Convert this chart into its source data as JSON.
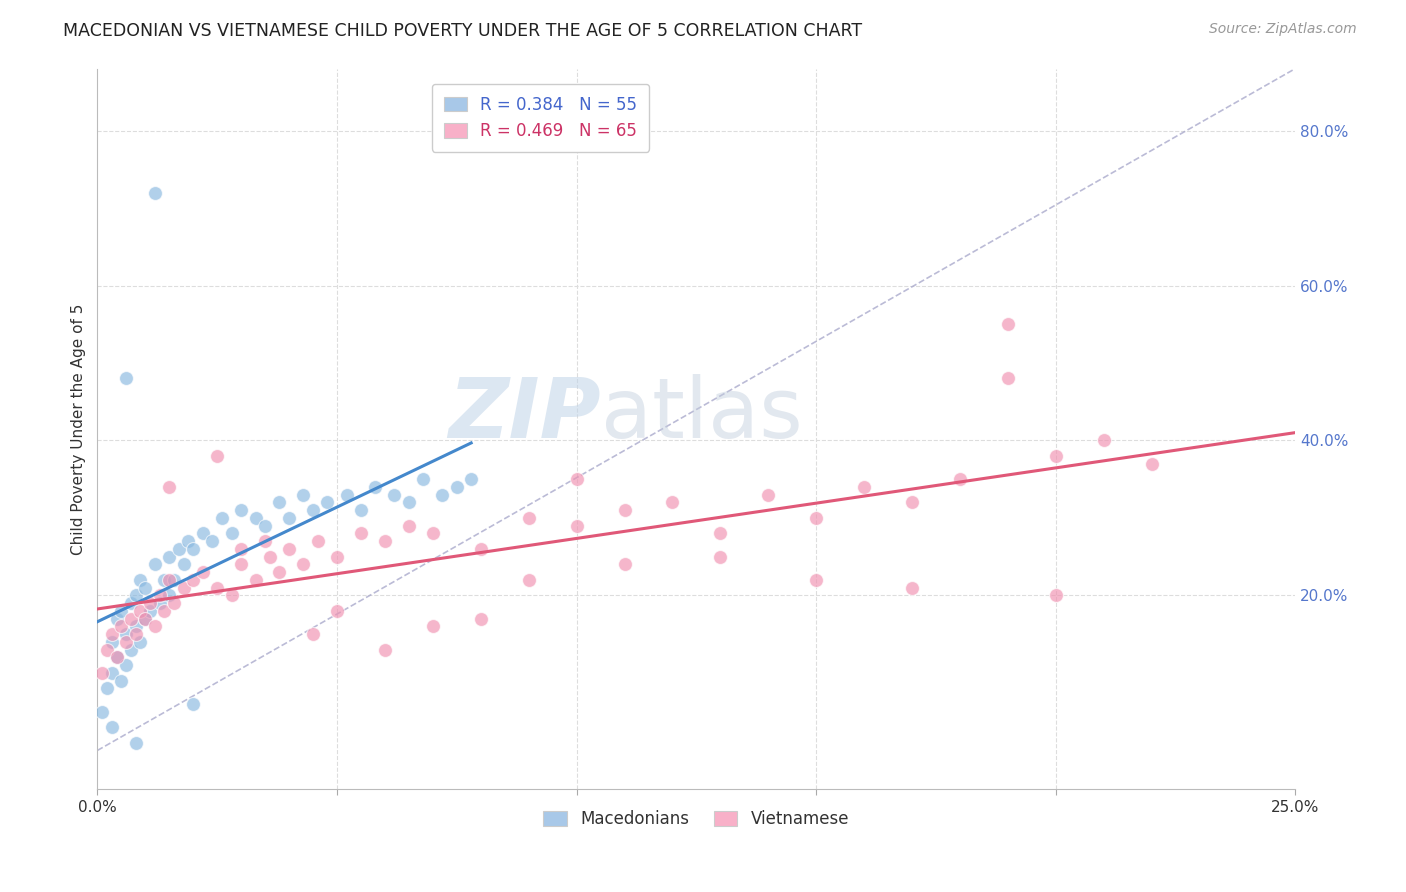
{
  "title": "MACEDONIAN VS VIETNAMESE CHILD POVERTY UNDER THE AGE OF 5 CORRELATION CHART",
  "source": "Source: ZipAtlas.com",
  "ylabel": "Child Poverty Under the Age of 5",
  "xlim": [
    0.0,
    0.25
  ],
  "ylim": [
    -0.05,
    0.88
  ],
  "xticks": [
    0.0,
    0.05,
    0.1,
    0.15,
    0.2,
    0.25
  ],
  "xtick_labels": [
    "0.0%",
    "",
    "",
    "",
    "",
    "25.0%"
  ],
  "yticks_right": [
    0.2,
    0.4,
    0.6,
    0.8
  ],
  "ytick_labels_right": [
    "20.0%",
    "40.0%",
    "60.0%",
    "80.0%"
  ],
  "legend_entries": [
    {
      "label": "R = 0.384   N = 55",
      "color": "#a8c8e8"
    },
    {
      "label": "R = 0.469   N = 65",
      "color": "#f8b0c8"
    }
  ],
  "legend_bottom": [
    "Macedonians",
    "Vietnamese"
  ],
  "macedonian_color": "#88b8e0",
  "vietnamese_color": "#f090b0",
  "trend_mac_color": "#4488cc",
  "trend_vie_color": "#e05878",
  "watermark_zip": "ZIP",
  "watermark_atlas": "atlas",
  "watermark_color_zip": "#c0d4e8",
  "watermark_color_atlas": "#c0ccdc",
  "grid_color": "#dddddd",
  "mac_points_x": [
    0.001,
    0.002,
    0.003,
    0.003,
    0.004,
    0.004,
    0.005,
    0.005,
    0.006,
    0.006,
    0.007,
    0.007,
    0.008,
    0.008,
    0.009,
    0.009,
    0.01,
    0.01,
    0.011,
    0.012,
    0.013,
    0.014,
    0.015,
    0.015,
    0.016,
    0.017,
    0.018,
    0.019,
    0.02,
    0.022,
    0.024,
    0.026,
    0.028,
    0.03,
    0.033,
    0.035,
    0.038,
    0.04,
    0.043,
    0.045,
    0.048,
    0.052,
    0.055,
    0.058,
    0.062,
    0.065,
    0.068,
    0.072,
    0.075,
    0.078,
    0.012,
    0.006,
    0.003,
    0.008,
    0.02
  ],
  "mac_points_y": [
    0.05,
    0.08,
    0.1,
    0.14,
    0.12,
    0.17,
    0.09,
    0.18,
    0.11,
    0.15,
    0.13,
    0.19,
    0.16,
    0.2,
    0.14,
    0.22,
    0.17,
    0.21,
    0.18,
    0.24,
    0.19,
    0.22,
    0.2,
    0.25,
    0.22,
    0.26,
    0.24,
    0.27,
    0.26,
    0.28,
    0.27,
    0.3,
    0.28,
    0.31,
    0.3,
    0.29,
    0.32,
    0.3,
    0.33,
    0.31,
    0.32,
    0.33,
    0.31,
    0.34,
    0.33,
    0.32,
    0.35,
    0.33,
    0.34,
    0.35,
    0.72,
    0.48,
    0.03,
    0.01,
    0.06
  ],
  "vie_points_x": [
    0.001,
    0.002,
    0.003,
    0.004,
    0.005,
    0.006,
    0.007,
    0.008,
    0.009,
    0.01,
    0.011,
    0.012,
    0.013,
    0.014,
    0.015,
    0.016,
    0.018,
    0.02,
    0.022,
    0.025,
    0.028,
    0.03,
    0.033,
    0.036,
    0.038,
    0.04,
    0.043,
    0.046,
    0.05,
    0.055,
    0.06,
    0.065,
    0.07,
    0.08,
    0.09,
    0.1,
    0.11,
    0.12,
    0.13,
    0.14,
    0.15,
    0.16,
    0.17,
    0.18,
    0.19,
    0.2,
    0.21,
    0.22,
    0.13,
    0.15,
    0.17,
    0.19,
    0.2,
    0.05,
    0.07,
    0.09,
    0.11,
    0.03,
    0.015,
    0.025,
    0.035,
    0.045,
    0.06,
    0.08,
    0.1
  ],
  "vie_points_y": [
    0.1,
    0.13,
    0.15,
    0.12,
    0.16,
    0.14,
    0.17,
    0.15,
    0.18,
    0.17,
    0.19,
    0.16,
    0.2,
    0.18,
    0.22,
    0.19,
    0.21,
    0.22,
    0.23,
    0.21,
    0.2,
    0.24,
    0.22,
    0.25,
    0.23,
    0.26,
    0.24,
    0.27,
    0.25,
    0.28,
    0.27,
    0.29,
    0.28,
    0.26,
    0.3,
    0.29,
    0.31,
    0.32,
    0.28,
    0.33,
    0.3,
    0.34,
    0.32,
    0.35,
    0.55,
    0.38,
    0.4,
    0.37,
    0.25,
    0.22,
    0.21,
    0.48,
    0.2,
    0.18,
    0.16,
    0.22,
    0.24,
    0.26,
    0.34,
    0.38,
    0.27,
    0.15,
    0.13,
    0.17,
    0.35
  ]
}
